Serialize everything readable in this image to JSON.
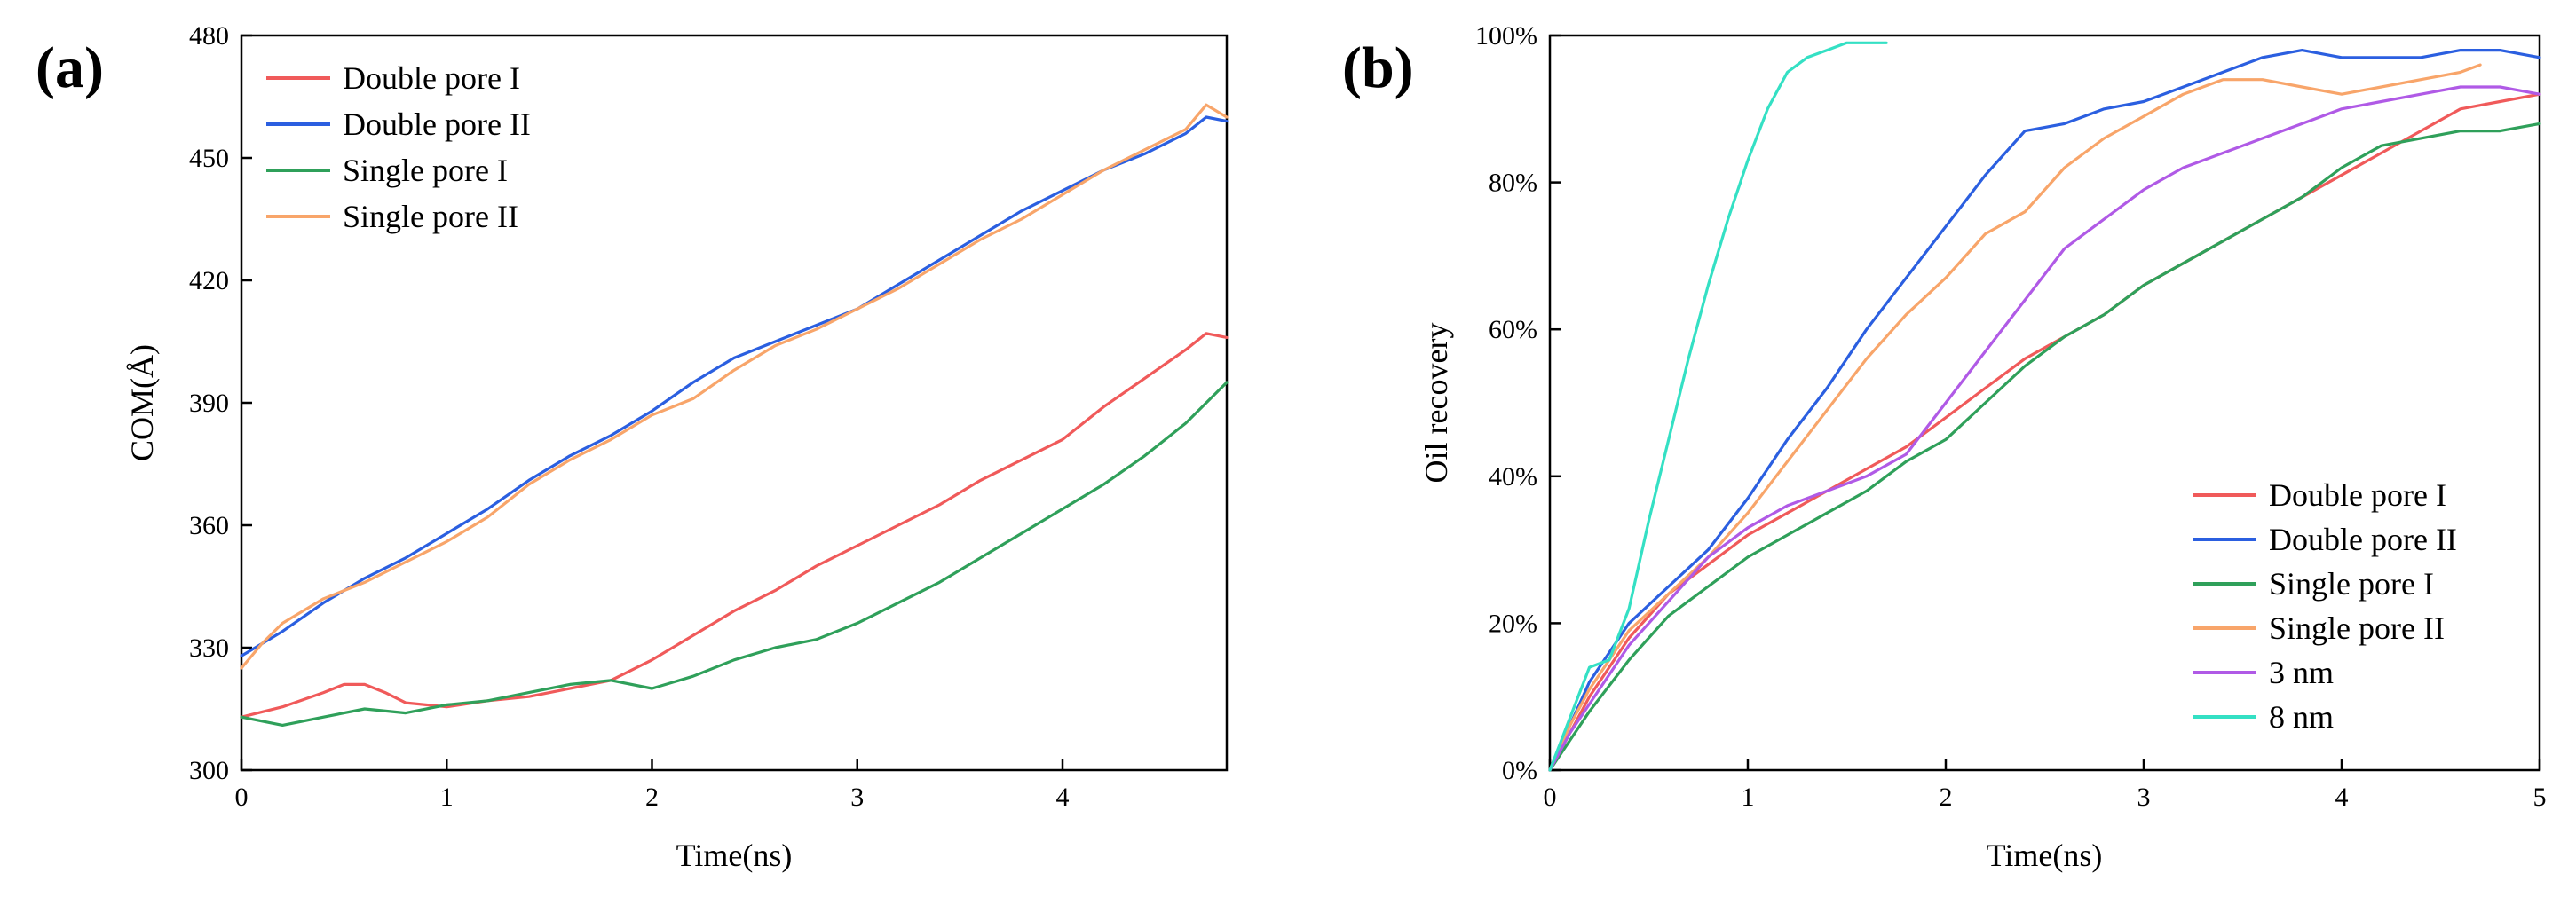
{
  "chart_data": [
    {
      "type": "line",
      "panel_label": "(a)",
      "title": "",
      "xlabel": "Time(ns)",
      "ylabel": "COM(Å)",
      "xlim": [
        0,
        4.8
      ],
      "ylim": [
        300,
        480
      ],
      "xticks": [
        0,
        1,
        2,
        3,
        4
      ],
      "xtick_labels": [
        "0",
        "1",
        "2",
        "3",
        "4"
      ],
      "yticks": [
        300,
        330,
        360,
        390,
        420,
        450,
        480
      ],
      "ytick_labels": [
        "300",
        "330",
        "360",
        "390",
        "420",
        "450",
        "480"
      ],
      "legend_position": "top-left",
      "series": [
        {
          "name": "Double pore I",
          "color": "#f05a5a",
          "x": [
            0,
            0.2,
            0.4,
            0.5,
            0.6,
            0.7,
            0.8,
            1.0,
            1.2,
            1.4,
            1.6,
            1.8,
            2.0,
            2.2,
            2.4,
            2.6,
            2.8,
            3.0,
            3.2,
            3.4,
            3.6,
            3.8,
            4.0,
            4.2,
            4.4,
            4.6,
            4.7,
            4.8
          ],
          "y": [
            313,
            315.5,
            319,
            321,
            321,
            319,
            316.5,
            315.5,
            317,
            318,
            320,
            322,
            327,
            333,
            339,
            344,
            350,
            355,
            360,
            365,
            371,
            376,
            381,
            389,
            396,
            403,
            407,
            406
          ]
        },
        {
          "name": "Double pore II",
          "color": "#2b5fe0",
          "x": [
            0,
            0.2,
            0.4,
            0.6,
            0.8,
            1.0,
            1.2,
            1.4,
            1.6,
            1.8,
            2.0,
            2.2,
            2.4,
            2.6,
            2.8,
            3.0,
            3.2,
            3.4,
            3.6,
            3.8,
            4.0,
            4.2,
            4.4,
            4.6,
            4.7,
            4.8
          ],
          "y": [
            328,
            334,
            341,
            347,
            352,
            358,
            364,
            371,
            377,
            382,
            388,
            395,
            401,
            405,
            409,
            413,
            419,
            425,
            431,
            437,
            442,
            447,
            451,
            456,
            460,
            459
          ]
        },
        {
          "name": "Single pore I",
          "color": "#2fa05a",
          "x": [
            0,
            0.2,
            0.4,
            0.6,
            0.8,
            1.0,
            1.2,
            1.4,
            1.6,
            1.8,
            2.0,
            2.2,
            2.4,
            2.6,
            2.8,
            3.0,
            3.2,
            3.4,
            3.6,
            3.8,
            4.0,
            4.2,
            4.4,
            4.6,
            4.8
          ],
          "y": [
            313,
            311,
            313,
            315,
            314,
            316,
            317,
            319,
            321,
            322,
            320,
            323,
            327,
            330,
            332,
            336,
            341,
            346,
            352,
            358,
            364,
            370,
            377,
            385,
            395
          ]
        },
        {
          "name": "Single pore II",
          "color": "#f8a56a",
          "x": [
            0,
            0.1,
            0.2,
            0.4,
            0.6,
            0.8,
            1.0,
            1.2,
            1.4,
            1.6,
            1.8,
            2.0,
            2.2,
            2.4,
            2.6,
            2.8,
            3.0,
            3.2,
            3.4,
            3.6,
            3.8,
            4.0,
            4.2,
            4.4,
            4.6,
            4.7,
            4.8
          ],
          "y": [
            325,
            331,
            336,
            342,
            346,
            351,
            356,
            362,
            370,
            376,
            381,
            387,
            391,
            398,
            404,
            408,
            413,
            418,
            424,
            430,
            435,
            441,
            447,
            452,
            457,
            463,
            460
          ]
        }
      ]
    },
    {
      "type": "line",
      "panel_label": "(b)",
      "title": "",
      "xlabel": "Time(ns)",
      "ylabel": "Oil recovery",
      "xlim": [
        0,
        5
      ],
      "ylim": [
        0,
        100
      ],
      "xticks": [
        0,
        1,
        2,
        3,
        4,
        5
      ],
      "xtick_labels": [
        "0",
        "1",
        "2",
        "3",
        "4",
        "5"
      ],
      "yticks": [
        0,
        20,
        40,
        60,
        80,
        100
      ],
      "ytick_labels": [
        "0%",
        "20%",
        "40%",
        "60%",
        "80%",
        "100%"
      ],
      "legend_position": "bottom-right",
      "series": [
        {
          "name": "Double pore I",
          "color": "#f05a5a",
          "x": [
            0,
            0.1,
            0.2,
            0.4,
            0.6,
            0.8,
            1.0,
            1.2,
            1.4,
            1.6,
            1.8,
            2.0,
            2.2,
            2.4,
            2.6,
            2.8,
            3.0,
            3.2,
            3.4,
            3.6,
            3.8,
            4.0,
            4.2,
            4.4,
            4.6,
            4.8,
            5.0
          ],
          "y": [
            0,
            5,
            10,
            18,
            24,
            28,
            32,
            35,
            38,
            41,
            44,
            48,
            52,
            56,
            59,
            62,
            66,
            69,
            72,
            75,
            78,
            81,
            84,
            87,
            90,
            91,
            92
          ]
        },
        {
          "name": "Double pore II",
          "color": "#2b5fe0",
          "x": [
            0,
            0.1,
            0.2,
            0.4,
            0.6,
            0.8,
            1.0,
            1.2,
            1.4,
            1.6,
            1.8,
            2.0,
            2.2,
            2.4,
            2.6,
            2.8,
            3.0,
            3.2,
            3.4,
            3.6,
            3.8,
            4.0,
            4.2,
            4.4,
            4.6,
            4.8,
            5.0
          ],
          "y": [
            0,
            6,
            12,
            20,
            25,
            30,
            37,
            45,
            52,
            60,
            67,
            74,
            81,
            87,
            88,
            90,
            91,
            93,
            95,
            97,
            98,
            97,
            97,
            97,
            98,
            98,
            97
          ]
        },
        {
          "name": "Single pore I",
          "color": "#2fa05a",
          "x": [
            0,
            0.1,
            0.2,
            0.4,
            0.6,
            0.8,
            1.0,
            1.2,
            1.4,
            1.6,
            1.8,
            2.0,
            2.2,
            2.4,
            2.6,
            2.8,
            3.0,
            3.2,
            3.4,
            3.6,
            3.8,
            4.0,
            4.2,
            4.4,
            4.6,
            4.8,
            5.0
          ],
          "y": [
            0,
            4,
            8,
            15,
            21,
            25,
            29,
            32,
            35,
            38,
            42,
            45,
            50,
            55,
            59,
            62,
            66,
            69,
            72,
            75,
            78,
            82,
            85,
            86,
            87,
            87,
            88
          ]
        },
        {
          "name": "Single pore II",
          "color": "#f8a56a",
          "x": [
            0,
            0.1,
            0.2,
            0.4,
            0.6,
            0.8,
            1.0,
            1.2,
            1.4,
            1.6,
            1.8,
            2.0,
            2.2,
            2.4,
            2.6,
            2.8,
            3.0,
            3.2,
            3.4,
            3.6,
            3.8,
            4.0,
            4.2,
            4.4,
            4.6,
            4.7
          ],
          "y": [
            0,
            6,
            11,
            19,
            24,
            29,
            35,
            42,
            49,
            56,
            62,
            67,
            73,
            76,
            82,
            86,
            89,
            92,
            94,
            94,
            93,
            92,
            93,
            94,
            95,
            96
          ]
        },
        {
          "name": "3 nm",
          "color": "#b05ae6",
          "x": [
            0,
            0.1,
            0.2,
            0.4,
            0.6,
            0.8,
            1.0,
            1.2,
            1.4,
            1.6,
            1.8,
            2.0,
            2.2,
            2.4,
            2.6,
            2.8,
            3.0,
            3.2,
            3.4,
            3.6,
            3.8,
            4.0,
            4.2,
            4.4,
            4.6,
            4.8,
            5.0
          ],
          "y": [
            0,
            5,
            9,
            17,
            23,
            29,
            33,
            36,
            38,
            40,
            43,
            50,
            57,
            64,
            71,
            75,
            79,
            82,
            84,
            86,
            88,
            90,
            91,
            92,
            93,
            93,
            92
          ]
        },
        {
          "name": "8 nm",
          "color": "#34e0c4",
          "x": [
            0,
            0.1,
            0.2,
            0.3,
            0.4,
            0.5,
            0.6,
            0.7,
            0.8,
            0.9,
            1.0,
            1.1,
            1.2,
            1.3,
            1.4,
            1.5,
            1.6,
            1.7
          ],
          "y": [
            0,
            7,
            14,
            15,
            22,
            34,
            45,
            56,
            66,
            75,
            83,
            90,
            95,
            97,
            98,
            99,
            99,
            99
          ]
        }
      ]
    }
  ]
}
